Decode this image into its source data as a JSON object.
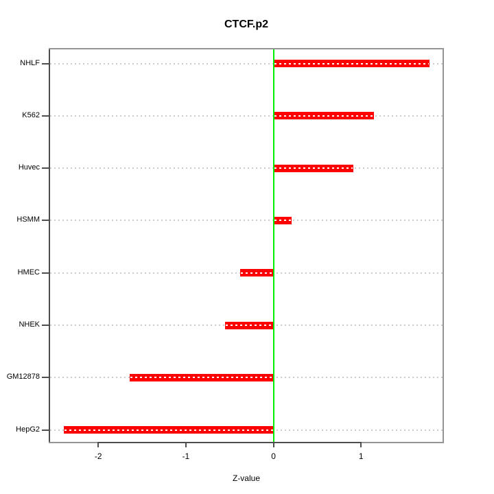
{
  "chart_data": {
    "type": "bar",
    "orientation": "horizontal",
    "title": "CTCF.p2",
    "xlabel": "Z-value",
    "ylabel": "",
    "categories": [
      "NHLF",
      "K562",
      "Huvec",
      "HSMM",
      "HMEC",
      "NHEK",
      "GM12878",
      "HepG2"
    ],
    "values": [
      1.78,
      1.15,
      0.91,
      0.21,
      -0.38,
      -0.55,
      -1.64,
      -2.39
    ],
    "x_ticks": [
      -2,
      -1,
      0,
      1
    ],
    "xlim": [
      -2.55,
      1.93
    ],
    "grid": true,
    "grid_style": "dotted-horizontal-at-each-category",
    "zero_line_value": 0,
    "legend": "none",
    "colors": {
      "bar": "#fe0000",
      "bar_center_dash": "#ffffff",
      "zero_line": "#00ee00",
      "grid": "#cbcbcb",
      "box": "#949494",
      "axis": "#4d4d4d",
      "text": "#000000",
      "background": "#ffffff"
    }
  }
}
